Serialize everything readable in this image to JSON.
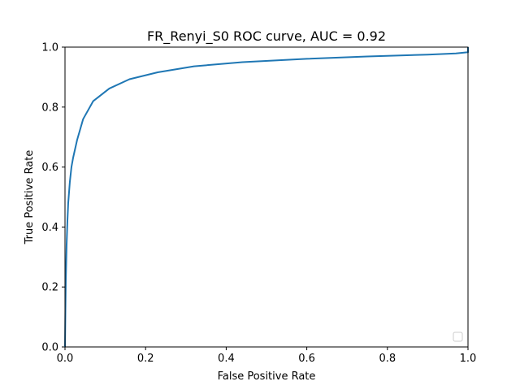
{
  "chart_data": {
    "type": "line",
    "title": "FR_Renyi_S0 ROC curve, AUC = 0.92",
    "xlabel": "False Positive Rate",
    "ylabel": "True Positive Rate",
    "xlim": [
      0.0,
      1.0
    ],
    "ylim": [
      0.0,
      1.0
    ],
    "xticks": [
      "0.0",
      "0.2",
      "0.4",
      "0.6",
      "0.8",
      "1.0"
    ],
    "yticks": [
      "0.0",
      "0.2",
      "0.4",
      "0.6",
      "0.8",
      "1.0"
    ],
    "grid": false,
    "legend": {
      "placement": "lower-right",
      "entries": []
    },
    "series": [
      {
        "color": "#1f77b4",
        "x": [
          0.0,
          0.001,
          0.002,
          0.004,
          0.006,
          0.008,
          0.012,
          0.016,
          0.02,
          0.03,
          0.045,
          0.07,
          0.11,
          0.16,
          0.23,
          0.32,
          0.44,
          0.6,
          0.75,
          0.9,
          0.97,
          1.0,
          1.0
        ],
        "y": [
          0.0,
          0.12,
          0.22,
          0.34,
          0.42,
          0.48,
          0.55,
          0.6,
          0.63,
          0.69,
          0.76,
          0.82,
          0.862,
          0.893,
          0.916,
          0.936,
          0.95,
          0.961,
          0.969,
          0.975,
          0.979,
          0.983,
          1.0
        ]
      }
    ]
  }
}
